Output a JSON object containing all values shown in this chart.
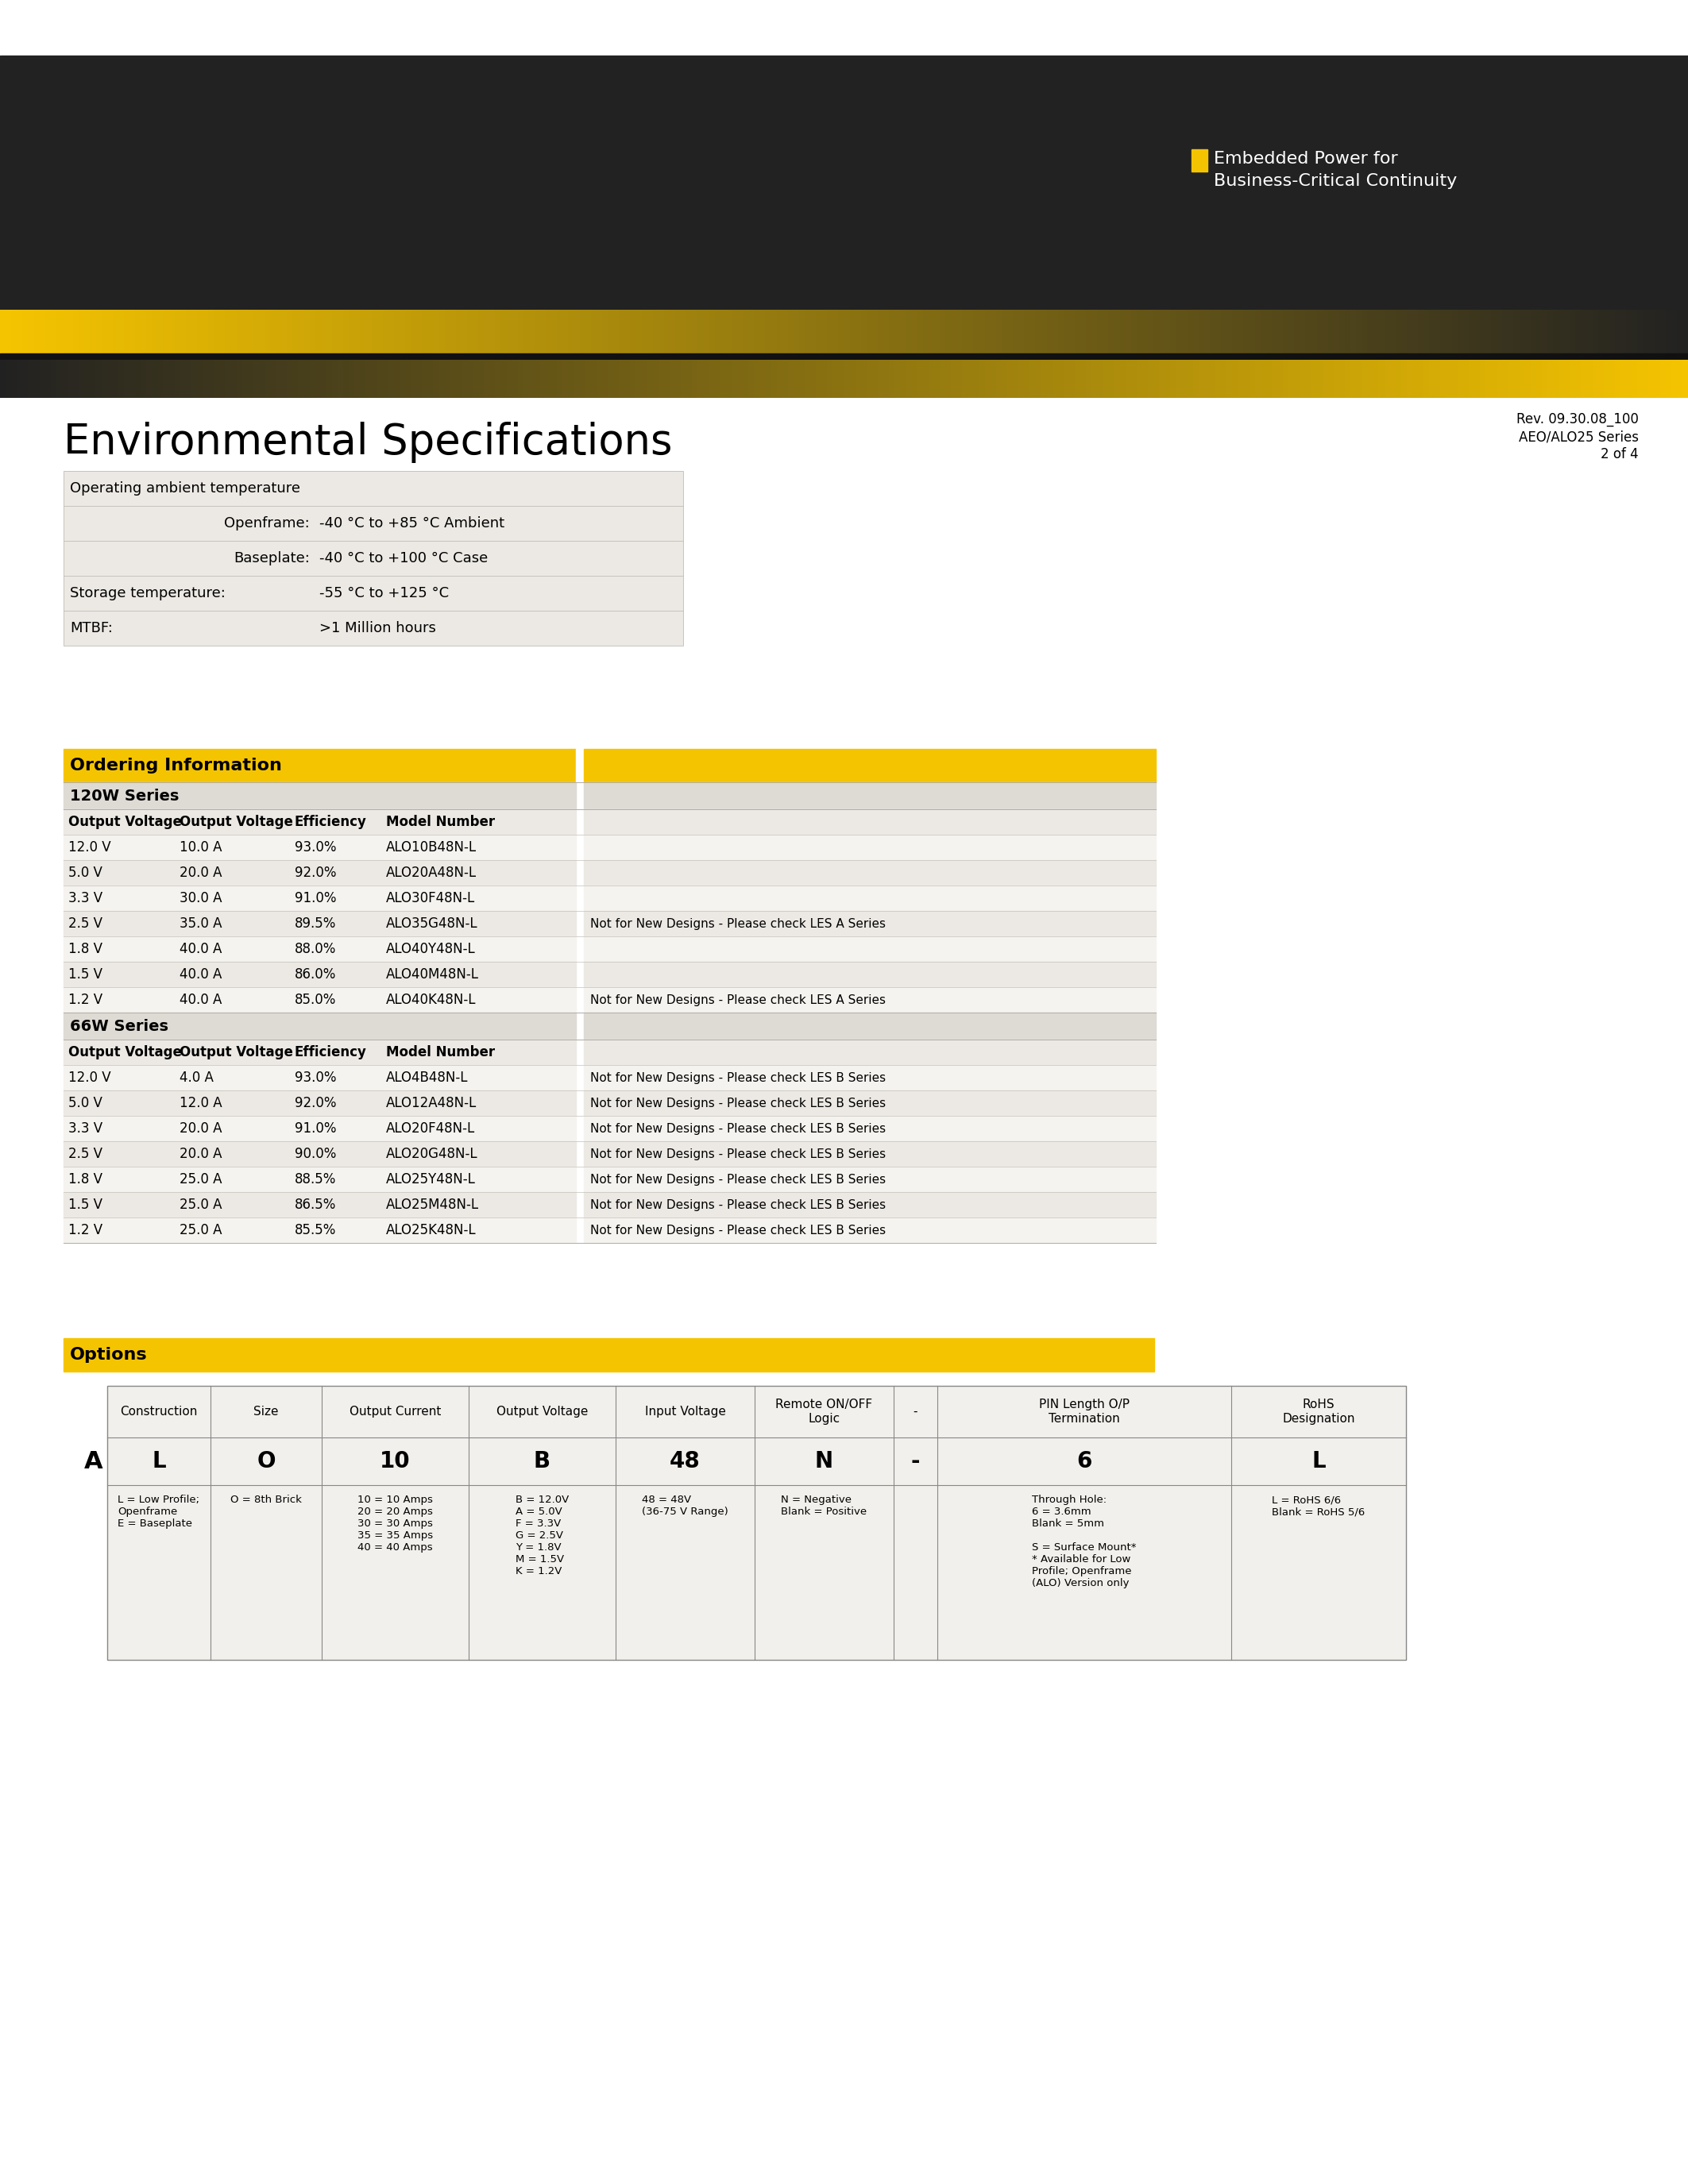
{
  "bg_color": "#ffffff",
  "header_dark_color": "#222222",
  "yellow_color": "#f5c400",
  "table_bg_light": "#ece9e4",
  "table_bg_lighter": "#f5f3ef",
  "table_header_yellow": "#f5c400",
  "table_series_bg": "#dedad4",
  "rev_lines": [
    "Rev. 09.30.08_100",
    "AEO/ALO25 Series",
    "2 of 4"
  ],
  "env_title": "Environmental Specifications",
  "env_rows": [
    {
      "label": "Operating ambient temperature",
      "indent_label": "",
      "value": ""
    },
    {
      "label": "",
      "indent_label": "Openframe:",
      "value": "-40 °C to +85 °C Ambient"
    },
    {
      "label": "",
      "indent_label": "Baseplate:",
      "value": "-40 °C to +100 °C Case"
    },
    {
      "label": "Storage temperature:",
      "indent_label": "",
      "value": "-55 °C to +125 °C"
    },
    {
      "label": "MTBF:",
      "indent_label": "",
      "value": ">1 Million hours"
    }
  ],
  "ordering_title": "Ordering Information",
  "series_120w": "120W Series",
  "series_66w": "66W Series",
  "col_headers": [
    "Output Voltage",
    "Output Voltage",
    "Efficiency",
    "Model Number"
  ],
  "rows_120w": [
    [
      "12.0 V",
      "10.0 A",
      "93.0%",
      "ALO10B48N-L",
      ""
    ],
    [
      "5.0 V",
      "20.0 A",
      "92.0%",
      "ALO20A48N-L",
      ""
    ],
    [
      "3.3 V",
      "30.0 A",
      "91.0%",
      "ALO30F48N-L",
      ""
    ],
    [
      "2.5 V",
      "35.0 A",
      "89.5%",
      "ALO35G48N-L",
      "Not for New Designs - Please check LES A Series"
    ],
    [
      "1.8 V",
      "40.0 A",
      "88.0%",
      "ALO40Y48N-L",
      ""
    ],
    [
      "1.5 V",
      "40.0 A",
      "86.0%",
      "ALO40M48N-L",
      ""
    ],
    [
      "1.2 V",
      "40.0 A",
      "85.0%",
      "ALO40K48N-L",
      "Not for New Designs - Please check LES A Series"
    ]
  ],
  "rows_66w": [
    [
      "12.0 V",
      "4.0 A",
      "93.0%",
      "ALO4B48N-L",
      "Not for New Designs - Please check LES B Series"
    ],
    [
      "5.0 V",
      "12.0 A",
      "92.0%",
      "ALO12A48N-L",
      "Not for New Designs - Please check LES B Series"
    ],
    [
      "3.3 V",
      "20.0 A",
      "91.0%",
      "ALO20F48N-L",
      "Not for New Designs - Please check LES B Series"
    ],
    [
      "2.5 V",
      "20.0 A",
      "90.0%",
      "ALO20G48N-L",
      "Not for New Designs - Please check LES B Series"
    ],
    [
      "1.8 V",
      "25.0 A",
      "88.5%",
      "ALO25Y48N-L",
      "Not for New Designs - Please check LES B Series"
    ],
    [
      "1.5 V",
      "25.0 A",
      "86.5%",
      "ALO25M48N-L",
      "Not for New Designs - Please check LES B Series"
    ],
    [
      "1.2 V",
      "25.0 A",
      "85.5%",
      "ALO25K48N-L",
      "Not for New Designs - Please check LES B Series"
    ]
  ],
  "options_title": "Options",
  "opt_col_headers": [
    "Construction",
    "Size",
    "Output Current",
    "Output Voltage",
    "Input Voltage",
    "Remote ON/OFF\nLogic",
    "-",
    "PIN Length O/P\nTermination",
    "RoHS\nDesignation"
  ],
  "opt_row_A": [
    "L",
    "O",
    "10",
    "B",
    "48",
    "N",
    "-",
    "6",
    "L"
  ],
  "opt_desc": [
    "L = Low Profile;\nOpenframe\nE = Baseplate",
    "O = 8th Brick",
    "10 = 10 Amps\n20 = 20 Amps\n30 = 30 Amps\n35 = 35 Amps\n40 = 40 Amps",
    "B = 12.0V\nA = 5.0V\nF = 3.3V\nG = 2.5V\nY = 1.8V\nM = 1.5V\nK = 1.2V",
    "48 = 48V\n(36-75 V Range)",
    "N = Negative\nBlank = Positive",
    "",
    "Through Hole:\n6 = 3.6mm\nBlank = 5mm\n\nS = Surface Mount*\n* Available for Low\nProfile; Openframe\n(ALO) Version only",
    "L = RoHS 6/6\nBlank = RoHS 5/6"
  ]
}
